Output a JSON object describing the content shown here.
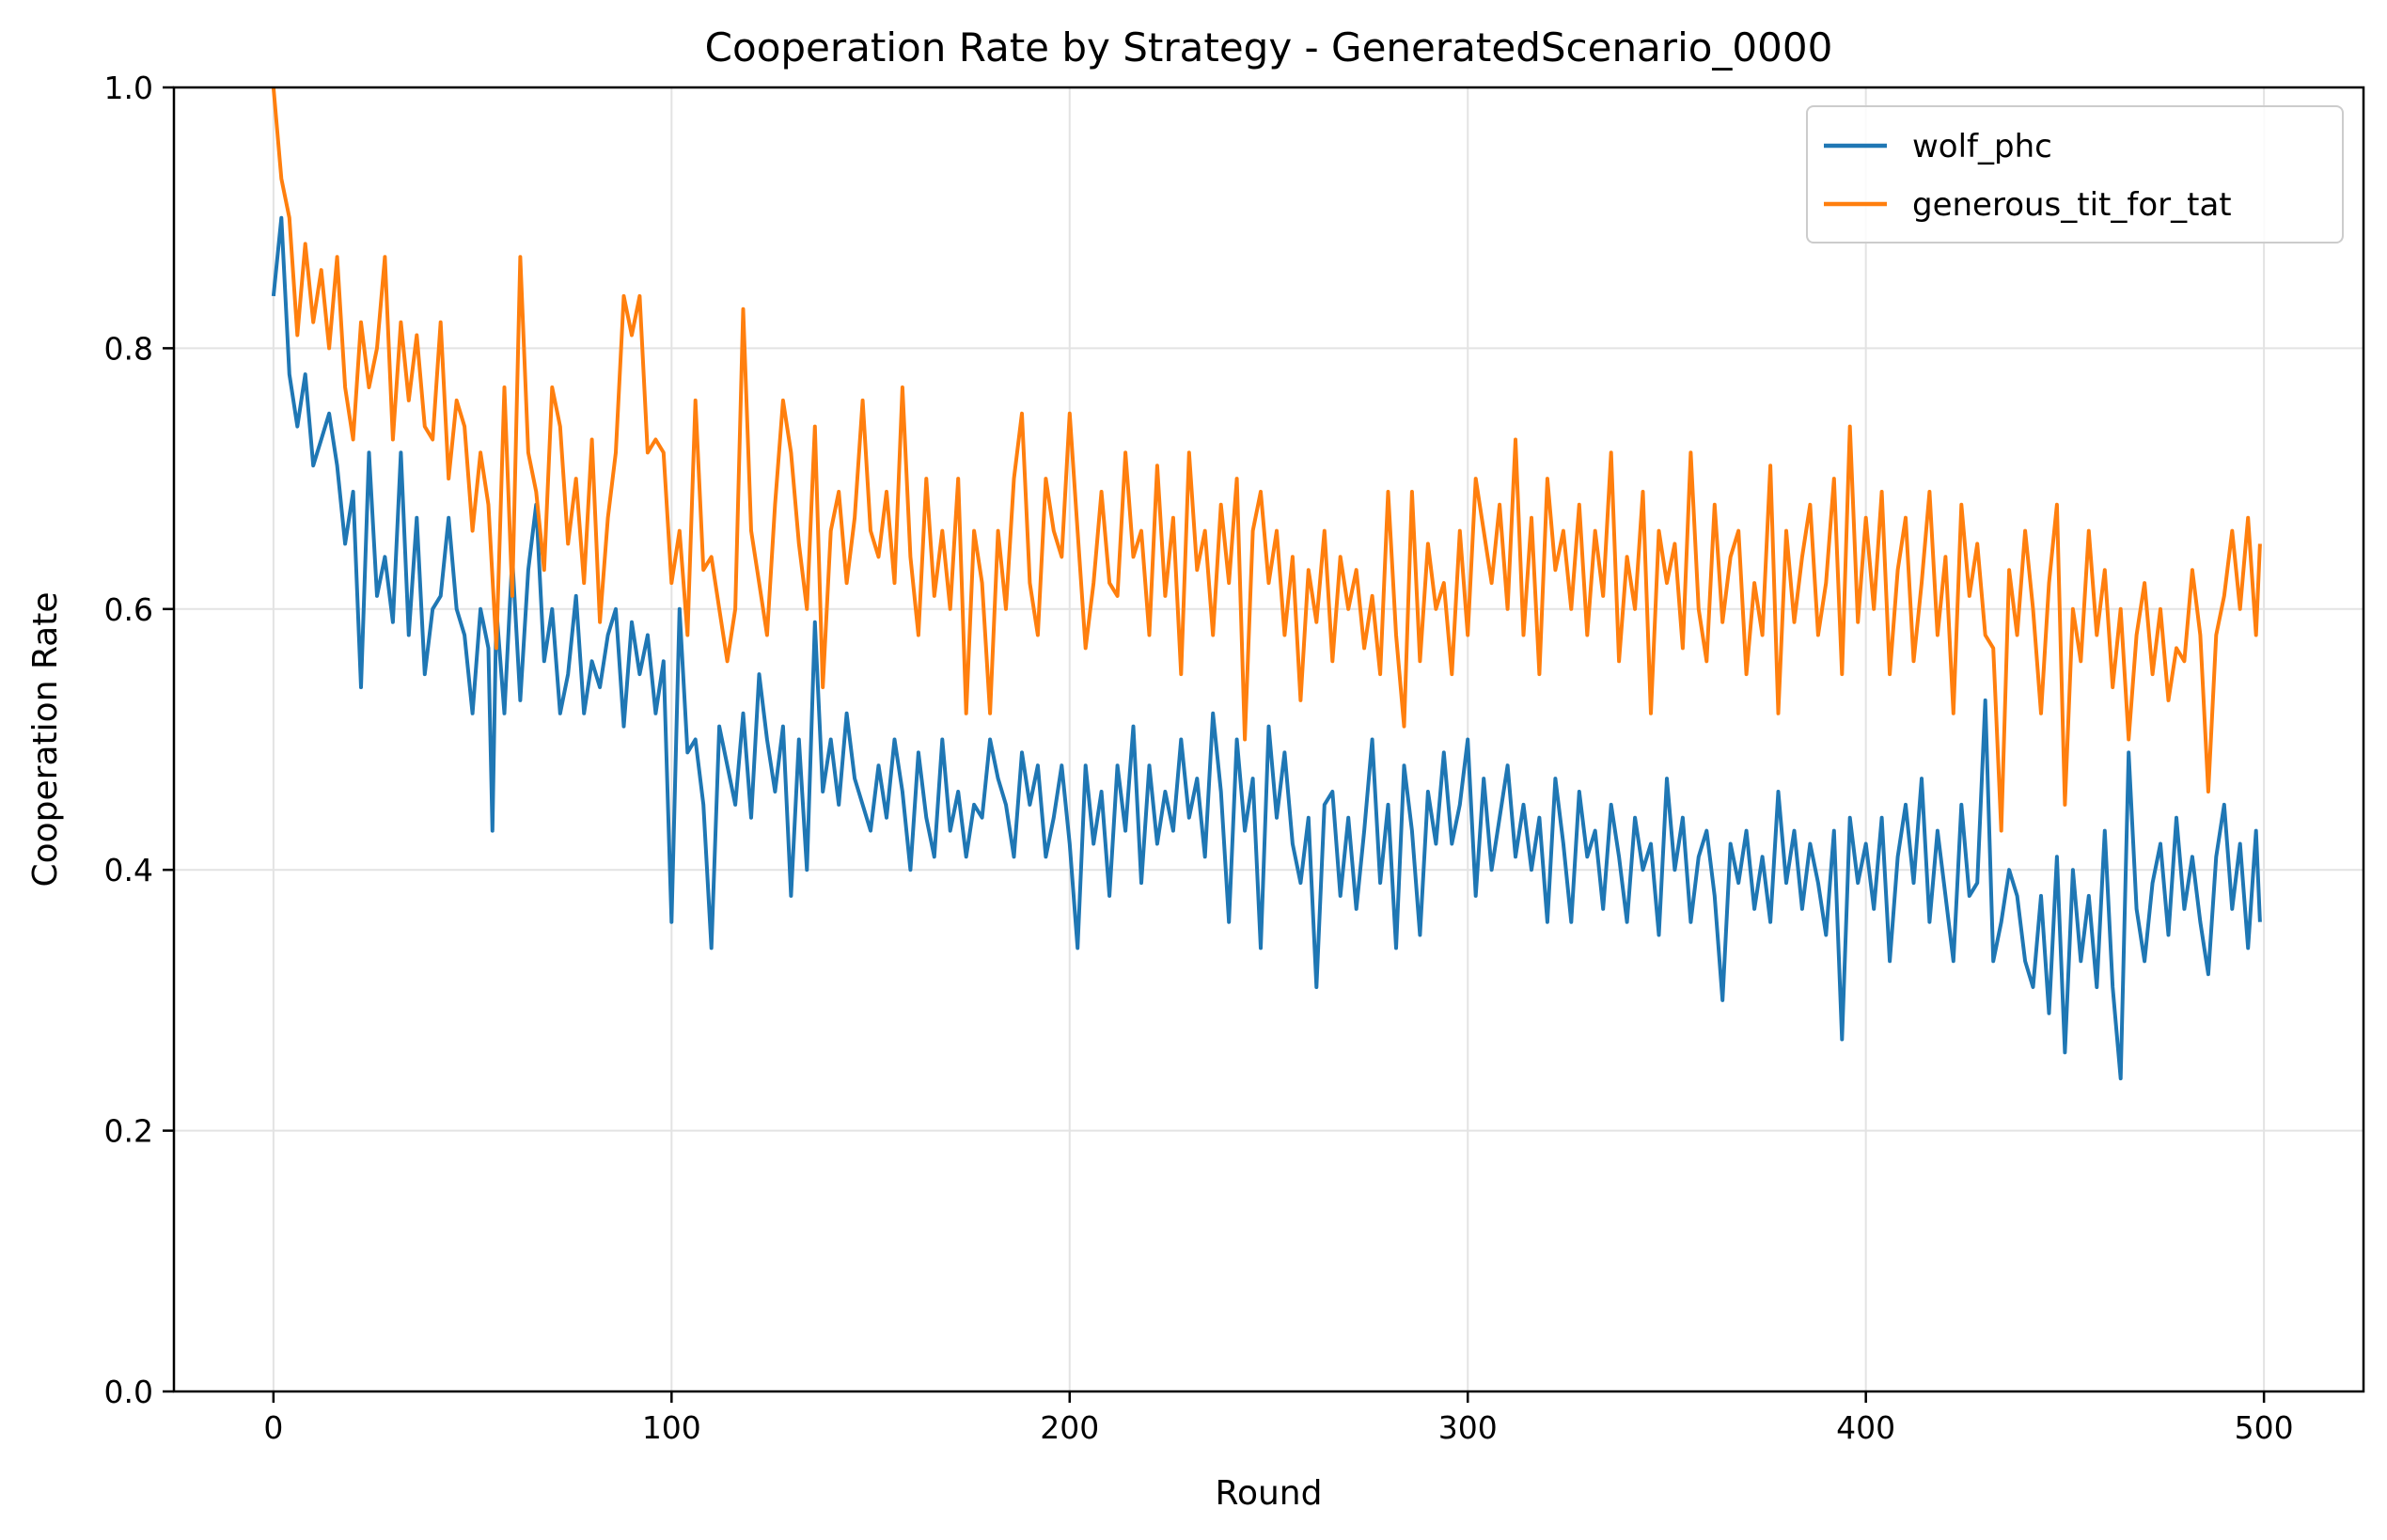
{
  "chart_data": {
    "type": "line",
    "title": "Cooperation Rate by Strategy - GeneratedScenario_0000",
    "xlabel": "Round",
    "ylabel": "Cooperation Rate",
    "xlim": [
      -25,
      525
    ],
    "ylim": [
      0.0,
      1.0
    ],
    "xticks": [
      0,
      100,
      200,
      300,
      400,
      500
    ],
    "yticks": [
      0.0,
      0.2,
      0.4,
      0.6,
      0.8,
      1.0
    ],
    "xtick_labels": [
      "0",
      "100",
      "200",
      "300",
      "400",
      "500"
    ],
    "ytick_labels": [
      "0.0",
      "0.2",
      "0.4",
      "0.6",
      "0.8",
      "1.0"
    ],
    "grid": true,
    "legend_position": "top-right",
    "series": [
      {
        "name": "wolf_phc",
        "color": "#1f77b4",
        "x": [
          0,
          2,
          4,
          6,
          8,
          10,
          12,
          14,
          16,
          18,
          20,
          22,
          24,
          26,
          28,
          30,
          32,
          34,
          36,
          38,
          40,
          42,
          44,
          46,
          48,
          50,
          52,
          54,
          55,
          56,
          58,
          60,
          62,
          64,
          66,
          68,
          70,
          72,
          74,
          76,
          78,
          80,
          82,
          84,
          86,
          88,
          90,
          92,
          94,
          96,
          98,
          100,
          102,
          104,
          106,
          108,
          110,
          112,
          114,
          116,
          118,
          120,
          122,
          124,
          126,
          128,
          130,
          132,
          134,
          136,
          138,
          140,
          142,
          144,
          146,
          148,
          150,
          152,
          154,
          156,
          158,
          160,
          162,
          164,
          166,
          168,
          170,
          172,
          174,
          176,
          178,
          180,
          182,
          184,
          186,
          188,
          190,
          192,
          194,
          196,
          198,
          200,
          202,
          204,
          206,
          208,
          210,
          212,
          214,
          216,
          218,
          220,
          222,
          224,
          226,
          228,
          230,
          232,
          234,
          236,
          238,
          240,
          242,
          244,
          246,
          248,
          250,
          252,
          254,
          256,
          258,
          260,
          262,
          264,
          266,
          268,
          270,
          272,
          274,
          276,
          278,
          280,
          282,
          284,
          286,
          288,
          290,
          292,
          294,
          296,
          298,
          300,
          302,
          304,
          306,
          308,
          310,
          312,
          314,
          316,
          318,
          320,
          322,
          324,
          326,
          328,
          330,
          332,
          334,
          336,
          338,
          340,
          342,
          344,
          346,
          348,
          350,
          352,
          354,
          356,
          358,
          360,
          362,
          364,
          366,
          368,
          370,
          372,
          374,
          376,
          378,
          380,
          382,
          384,
          386,
          388,
          390,
          392,
          394,
          396,
          398,
          400,
          402,
          404,
          406,
          408,
          410,
          412,
          414,
          416,
          418,
          420,
          422,
          424,
          426,
          428,
          430,
          432,
          434,
          436,
          438,
          440,
          442,
          444,
          446,
          448,
          450,
          452,
          454,
          456,
          458,
          460,
          462,
          464,
          466,
          468,
          470,
          472,
          474,
          476,
          478,
          480,
          482,
          484,
          486,
          488,
          490,
          492,
          494,
          496,
          498,
          499
        ],
        "y": [
          0.84,
          0.9,
          0.78,
          0.74,
          0.78,
          0.71,
          0.73,
          0.75,
          0.71,
          0.65,
          0.69,
          0.54,
          0.72,
          0.61,
          0.64,
          0.59,
          0.72,
          0.58,
          0.67,
          0.55,
          0.6,
          0.61,
          0.67,
          0.6,
          0.58,
          0.52,
          0.6,
          0.57,
          0.43,
          0.6,
          0.52,
          0.64,
          0.53,
          0.63,
          0.68,
          0.56,
          0.6,
          0.52,
          0.55,
          0.61,
          0.52,
          0.56,
          0.54,
          0.58,
          0.6,
          0.51,
          0.59,
          0.55,
          0.58,
          0.52,
          0.56,
          0.36,
          0.6,
          0.49,
          0.5,
          0.45,
          0.34,
          0.51,
          0.48,
          0.45,
          0.52,
          0.44,
          0.55,
          0.5,
          0.46,
          0.51,
          0.38,
          0.5,
          0.4,
          0.59,
          0.46,
          0.5,
          0.45,
          0.52,
          0.47,
          0.45,
          0.43,
          0.48,
          0.44,
          0.5,
          0.46,
          0.4,
          0.49,
          0.44,
          0.41,
          0.5,
          0.43,
          0.46,
          0.41,
          0.45,
          0.44,
          0.5,
          0.47,
          0.45,
          0.41,
          0.49,
          0.45,
          0.48,
          0.41,
          0.44,
          0.48,
          0.42,
          0.34,
          0.48,
          0.42,
          0.46,
          0.38,
          0.48,
          0.43,
          0.51,
          0.39,
          0.48,
          0.42,
          0.46,
          0.43,
          0.5,
          0.44,
          0.47,
          0.41,
          0.52,
          0.46,
          0.36,
          0.5,
          0.43,
          0.47,
          0.34,
          0.51,
          0.44,
          0.49,
          0.42,
          0.39,
          0.44,
          0.31,
          0.45,
          0.46,
          0.38,
          0.44,
          0.37,
          0.43,
          0.5,
          0.39,
          0.45,
          0.34,
          0.48,
          0.43,
          0.35,
          0.46,
          0.42,
          0.49,
          0.42,
          0.45,
          0.5,
          0.38,
          0.47,
          0.4,
          0.44,
          0.48,
          0.41,
          0.45,
          0.4,
          0.44,
          0.36,
          0.47,
          0.42,
          0.36,
          0.46,
          0.41,
          0.43,
          0.37,
          0.45,
          0.41,
          0.36,
          0.44,
          0.4,
          0.42,
          0.35,
          0.47,
          0.4,
          0.44,
          0.36,
          0.41,
          0.43,
          0.38,
          0.3,
          0.42,
          0.39,
          0.43,
          0.37,
          0.41,
          0.36,
          0.46,
          0.39,
          0.43,
          0.37,
          0.42,
          0.39,
          0.35,
          0.43,
          0.27,
          0.44,
          0.39,
          0.42,
          0.37,
          0.44,
          0.33,
          0.41,
          0.45,
          0.39,
          0.47,
          0.36,
          0.43,
          0.38,
          0.33,
          0.45,
          0.38,
          0.39,
          0.53,
          0.33,
          0.36,
          0.4,
          0.38,
          0.33,
          0.31,
          0.38,
          0.29,
          0.41,
          0.26,
          0.4,
          0.33,
          0.38,
          0.31,
          0.43,
          0.31,
          0.24,
          0.49,
          0.37,
          0.33,
          0.39,
          0.42,
          0.35,
          0.44,
          0.37,
          0.41,
          0.36,
          0.32,
          0.41,
          0.45,
          0.37,
          0.42,
          0.34,
          0.43,
          0.36
        ],
        "y_extra_note_unused": null
      },
      {
        "name": "generous_tit_for_tat",
        "color": "#ff7f0e",
        "x": [
          0,
          2,
          4,
          6,
          8,
          10,
          12,
          14,
          16,
          18,
          20,
          22,
          24,
          26,
          28,
          30,
          32,
          34,
          36,
          38,
          40,
          42,
          44,
          46,
          48,
          50,
          52,
          54,
          56,
          58,
          60,
          62,
          64,
          66,
          68,
          70,
          72,
          74,
          76,
          78,
          80,
          82,
          84,
          86,
          88,
          90,
          92,
          94,
          96,
          98,
          100,
          102,
          104,
          106,
          108,
          110,
          112,
          114,
          116,
          118,
          120,
          122,
          124,
          126,
          128,
          130,
          132,
          134,
          136,
          138,
          140,
          142,
          144,
          146,
          148,
          150,
          152,
          154,
          156,
          158,
          160,
          162,
          164,
          166,
          168,
          170,
          172,
          174,
          176,
          178,
          180,
          182,
          184,
          186,
          188,
          190,
          192,
          194,
          196,
          198,
          200,
          202,
          204,
          206,
          208,
          210,
          212,
          214,
          216,
          218,
          220,
          222,
          224,
          226,
          228,
          230,
          232,
          234,
          236,
          238,
          240,
          242,
          244,
          246,
          248,
          250,
          252,
          254,
          256,
          258,
          260,
          262,
          264,
          266,
          268,
          270,
          272,
          274,
          276,
          278,
          280,
          282,
          284,
          286,
          288,
          290,
          292,
          294,
          296,
          298,
          300,
          302,
          304,
          306,
          308,
          310,
          312,
          314,
          316,
          318,
          320,
          322,
          324,
          326,
          328,
          330,
          332,
          334,
          336,
          338,
          340,
          342,
          344,
          346,
          348,
          350,
          352,
          354,
          356,
          358,
          360,
          362,
          364,
          366,
          368,
          370,
          372,
          374,
          376,
          378,
          380,
          382,
          384,
          386,
          388,
          390,
          392,
          394,
          396,
          398,
          400,
          402,
          404,
          406,
          408,
          410,
          412,
          414,
          416,
          418,
          420,
          422,
          424,
          426,
          428,
          430,
          432,
          434,
          436,
          438,
          440,
          442,
          444,
          446,
          448,
          450,
          452,
          454,
          456,
          458,
          460,
          462,
          464,
          466,
          468,
          470,
          472,
          474,
          476,
          478,
          480,
          482,
          484,
          486,
          488,
          490,
          492,
          494,
          496,
          498,
          499
        ],
        "y": [
          1.0,
          0.93,
          0.9,
          0.81,
          0.88,
          0.82,
          0.86,
          0.8,
          0.87,
          0.77,
          0.73,
          0.82,
          0.77,
          0.8,
          0.87,
          0.73,
          0.82,
          0.76,
          0.81,
          0.74,
          0.73,
          0.82,
          0.7,
          0.76,
          0.74,
          0.66,
          0.72,
          0.68,
          0.57,
          0.77,
          0.61,
          0.87,
          0.72,
          0.69,
          0.63,
          0.77,
          0.74,
          0.65,
          0.7,
          0.62,
          0.73,
          0.59,
          0.67,
          0.72,
          0.84,
          0.81,
          0.84,
          0.72,
          0.73,
          0.72,
          0.62,
          0.66,
          0.58,
          0.76,
          0.63,
          0.64,
          0.6,
          0.56,
          0.6,
          0.83,
          0.66,
          0.62,
          0.58,
          0.68,
          0.76,
          0.72,
          0.65,
          0.6,
          0.74,
          0.54,
          0.66,
          0.69,
          0.62,
          0.67,
          0.76,
          0.66,
          0.64,
          0.69,
          0.62,
          0.77,
          0.64,
          0.58,
          0.7,
          0.61,
          0.66,
          0.6,
          0.7,
          0.52,
          0.66,
          0.62,
          0.52,
          0.66,
          0.6,
          0.7,
          0.75,
          0.62,
          0.58,
          0.7,
          0.66,
          0.64,
          0.75,
          0.66,
          0.57,
          0.62,
          0.69,
          0.62,
          0.61,
          0.72,
          0.64,
          0.66,
          0.58,
          0.71,
          0.61,
          0.67,
          0.55,
          0.72,
          0.63,
          0.66,
          0.58,
          0.68,
          0.62,
          0.7,
          0.5,
          0.66,
          0.69,
          0.62,
          0.66,
          0.58,
          0.64,
          0.53,
          0.63,
          0.59,
          0.66,
          0.56,
          0.64,
          0.6,
          0.63,
          0.57,
          0.61,
          0.55,
          0.69,
          0.58,
          0.51,
          0.69,
          0.56,
          0.65,
          0.6,
          0.62,
          0.55,
          0.66,
          0.58,
          0.7,
          0.66,
          0.62,
          0.68,
          0.6,
          0.73,
          0.58,
          0.67,
          0.55,
          0.7,
          0.63,
          0.66,
          0.6,
          0.68,
          0.58,
          0.66,
          0.61,
          0.72,
          0.56,
          0.64,
          0.6,
          0.69,
          0.52,
          0.66,
          0.62,
          0.65,
          0.57,
          0.72,
          0.6,
          0.56,
          0.68,
          0.59,
          0.64,
          0.66,
          0.55,
          0.62,
          0.58,
          0.71,
          0.52,
          0.66,
          0.59,
          0.64,
          0.68,
          0.58,
          0.62,
          0.7,
          0.55,
          0.74,
          0.59,
          0.67,
          0.6,
          0.69,
          0.55,
          0.63,
          0.67,
          0.56,
          0.62,
          0.69,
          0.58,
          0.64,
          0.52,
          0.68,
          0.61,
          0.65,
          0.58,
          0.57,
          0.43,
          0.63,
          0.58,
          0.66,
          0.6,
          0.52,
          0.62,
          0.68,
          0.45,
          0.6,
          0.56,
          0.66,
          0.58,
          0.63,
          0.54,
          0.6,
          0.5,
          0.58,
          0.62,
          0.55,
          0.6,
          0.53,
          0.57,
          0.56,
          0.63,
          0.58,
          0.46,
          0.58,
          0.61,
          0.66,
          0.6,
          0.67,
          0.58,
          0.65
        ],
        "y_extra_note_unused": null
      }
    ]
  }
}
